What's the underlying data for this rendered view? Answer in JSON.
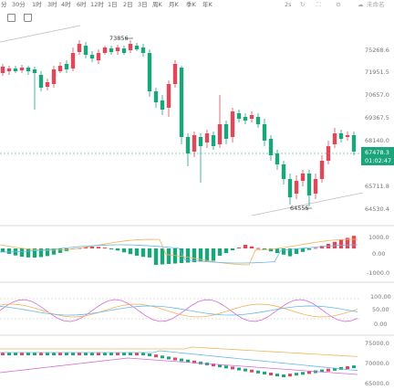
{
  "toolbar": {
    "periods": [
      "分",
      "30分",
      "1时",
      "3时",
      "4时",
      "6时",
      "12时",
      "1日",
      "2日",
      "3日",
      "周K",
      "月K",
      "季K",
      "年K"
    ],
    "scale": "2s",
    "status_label": "未命名"
  },
  "chart": {
    "price_ticks": [
      "75268.6",
      "71951.5",
      "70657.0",
      "69367.5",
      "68140.0",
      "65711.8",
      "64530.4"
    ],
    "current_price": "67478.3",
    "countdown": "01:02:47",
    "high_label": "73856",
    "low_label": "64555",
    "macd_ticks": [
      "1000.0",
      "0.00",
      "-1000.0"
    ],
    "rsi_ticks": [
      "100.00",
      "50.00",
      "0.00"
    ],
    "bottom_ticks": [
      "75000.0",
      "70000.0",
      "65000.0"
    ],
    "colors": {
      "up": "#e0485a",
      "down": "#1aa57a",
      "ma1": "#f2b35a",
      "ma2": "#d66ad8",
      "ma3": "#66b8e6"
    }
  }
}
